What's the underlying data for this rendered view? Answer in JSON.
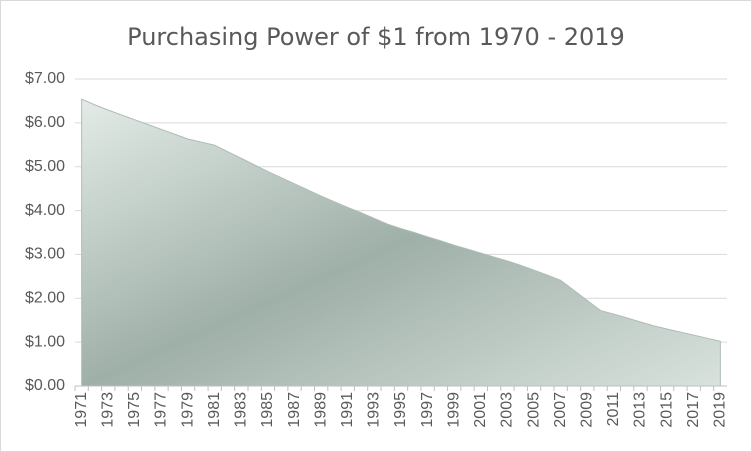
{
  "chart_data": {
    "type": "area",
    "title": "Purchasing Power of $1 from 1970 - 2019",
    "categories": [
      "1971",
      null,
      "1973",
      null,
      "1975",
      null,
      "1977",
      null,
      "1979",
      null,
      "1981",
      null,
      "1983",
      null,
      "1985",
      null,
      "1987",
      null,
      "1989",
      null,
      "1991",
      null,
      "1993",
      null,
      "1995",
      null,
      "1997",
      null,
      "1999",
      null,
      "2001",
      null,
      "2003",
      null,
      "2005",
      null,
      "2007",
      null,
      "2009",
      null,
      "2011",
      null,
      "2013",
      null,
      "2015",
      null,
      "2017",
      null,
      "2019"
    ],
    "values": [
      6.54,
      6.41,
      6.29,
      6.18,
      6.07,
      5.96,
      5.85,
      5.74,
      5.63,
      5.56,
      5.49,
      5.34,
      5.19,
      5.04,
      4.89,
      4.75,
      4.61,
      4.47,
      4.33,
      4.2,
      4.07,
      3.95,
      3.82,
      3.69,
      3.59,
      3.5,
      3.4,
      3.31,
      3.21,
      3.12,
      3.03,
      2.94,
      2.85,
      2.75,
      2.64,
      2.53,
      2.41,
      2.18,
      1.95,
      1.72,
      1.64,
      1.55,
      1.46,
      1.37,
      1.3,
      1.23,
      1.16,
      1.09,
      1.02
    ],
    "color": "#aebdb6",
    "ylim": [
      0,
      7
    ],
    "yticks": [
      {
        "value": 0,
        "label": "$0.00"
      },
      {
        "value": 1,
        "label": "$1.00"
      },
      {
        "value": 2,
        "label": "$2.00"
      },
      {
        "value": 3,
        "label": "$3.00"
      },
      {
        "value": 4,
        "label": "$4.00"
      },
      {
        "value": 5,
        "label": "$5.00"
      },
      {
        "value": 6,
        "label": "$6.00"
      },
      {
        "value": 7,
        "label": "$7.00"
      }
    ],
    "grid": true
  }
}
